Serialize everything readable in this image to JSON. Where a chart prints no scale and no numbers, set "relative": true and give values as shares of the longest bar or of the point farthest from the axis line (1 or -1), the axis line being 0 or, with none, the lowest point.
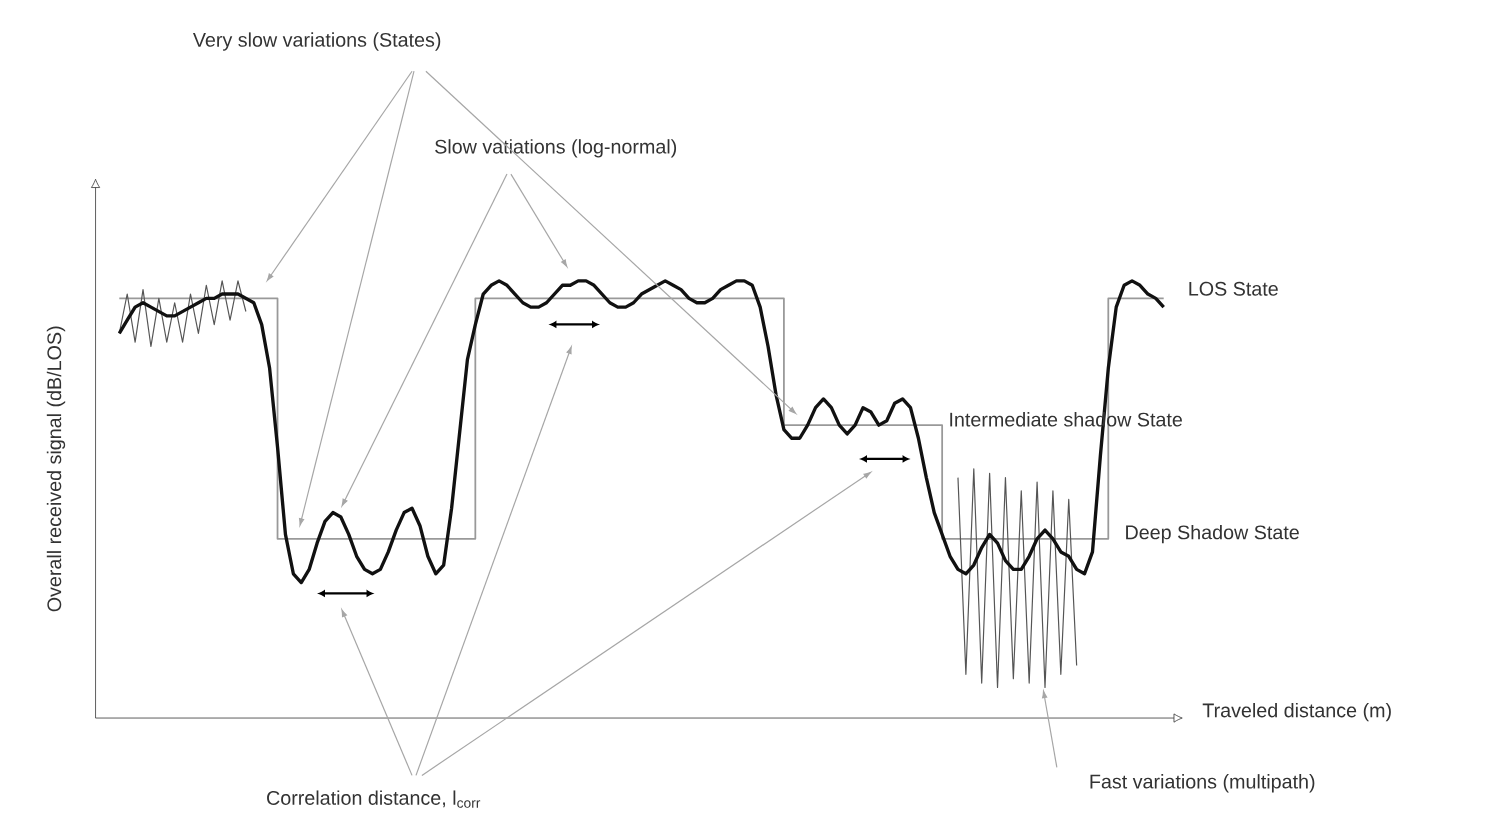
{
  "chart_data": {
    "type": "line",
    "relative": true,
    "xlabel": "Traveled distance (m)",
    "ylabel": "Overall received signal (dB/LOS)",
    "categories": [
      null,
      null,
      null,
      null,
      null,
      null,
      null,
      null,
      null,
      null,
      null,
      null,
      null,
      null,
      null,
      null,
      null,
      null,
      null,
      null,
      null,
      null,
      null,
      null,
      null,
      null,
      null,
      null,
      null,
      null,
      null,
      null,
      null,
      null,
      null,
      null,
      null,
      null,
      null,
      null,
      null,
      null,
      null,
      null,
      null,
      null,
      null,
      null,
      null,
      null,
      null,
      null,
      null,
      null,
      null,
      null,
      null,
      null,
      null,
      null,
      null,
      null,
      null,
      null,
      null,
      null,
      null,
      null,
      null,
      null,
      null,
      null,
      null,
      null,
      null,
      null,
      null,
      null,
      null,
      null,
      null,
      null,
      null,
      null,
      null,
      null,
      null,
      null,
      null,
      null,
      null,
      null,
      null,
      null,
      null,
      null,
      null,
      null,
      null,
      null,
      null,
      null,
      null,
      null,
      null,
      null,
      null,
      null,
      null,
      null,
      null,
      null,
      null,
      null,
      null,
      null,
      null,
      null,
      null,
      null,
      null,
      null,
      null,
      null,
      null,
      null,
      null,
      null,
      null,
      null,
      null,
      null,
      null
    ],
    "series": [
      {
        "type": "step",
        "color": "#999999",
        "values": [
          0.96,
          0.96,
          0.96,
          0.96,
          0.96,
          0.96,
          0.96,
          0.96,
          0.96,
          0.96,
          0.96,
          0.96,
          0.96,
          0.96,
          0.96,
          0.96,
          0.96,
          0.96,
          0.96,
          0.96,
          0.41,
          0.41,
          0.41,
          0.41,
          0.41,
          0.41,
          0.41,
          0.41,
          0.41,
          0.41,
          0.41,
          0.41,
          0.41,
          0.41,
          0.41,
          0.41,
          0.41,
          0.41,
          0.41,
          0.41,
          0.41,
          0.41,
          0.41,
          0.41,
          0.41,
          0.96,
          0.96,
          0.96,
          0.96,
          0.96,
          0.96,
          0.96,
          0.96,
          0.96,
          0.96,
          0.96,
          0.96,
          0.96,
          0.96,
          0.96,
          0.96,
          0.96,
          0.96,
          0.96,
          0.96,
          0.96,
          0.96,
          0.96,
          0.96,
          0.96,
          0.96,
          0.96,
          0.96,
          0.96,
          0.96,
          0.96,
          0.96,
          0.96,
          0.96,
          0.96,
          0.96,
          0.96,
          0.96,
          0.96,
          0.67,
          0.67,
          0.67,
          0.67,
          0.67,
          0.67,
          0.67,
          0.67,
          0.67,
          0.67,
          0.67,
          0.67,
          0.67,
          0.67,
          0.67,
          0.67,
          0.67,
          0.67,
          0.67,
          0.67,
          0.41,
          0.41,
          0.41,
          0.41,
          0.41,
          0.41,
          0.41,
          0.41,
          0.41,
          0.41,
          0.41,
          0.41,
          0.41,
          0.41,
          0.41,
          0.41,
          0.41,
          0.41,
          0.41,
          0.41,
          0.41,
          0.96,
          0.96,
          0.96,
          0.96,
          0.96,
          0.96,
          0.96,
          0.96
        ]
      },
      {
        "type": "line",
        "color": "#555555",
        "values": [
          0.88,
          0.97,
          0.86,
          0.98,
          0.85,
          0.96,
          0.86,
          0.95,
          0.86,
          0.97,
          0.88,
          0.99,
          0.9,
          1.0,
          0.91,
          1.0,
          0.93,
          null,
          null,
          null,
          null,
          null,
          null,
          null,
          null,
          null,
          null,
          null,
          null,
          null,
          null,
          null,
          null,
          null,
          null,
          null,
          null,
          null,
          null,
          null,
          null,
          null,
          null,
          null,
          null,
          null,
          null,
          null,
          null,
          null,
          null,
          null,
          null,
          null,
          null,
          null,
          null,
          null,
          null,
          null,
          null,
          null,
          null,
          null,
          null,
          null,
          null,
          null,
          null,
          null,
          null,
          null,
          null,
          null,
          null,
          null,
          null,
          null,
          null,
          null,
          null,
          null,
          null,
          null,
          null,
          null,
          null,
          null,
          null,
          null,
          null,
          null,
          null,
          null,
          null,
          null,
          null,
          null,
          null,
          null,
          null,
          null,
          null,
          null,
          null,
          null,
          0.55,
          0.1,
          0.57,
          0.08,
          0.56,
          0.07,
          0.55,
          0.09,
          0.52,
          0.08,
          0.54,
          0.07,
          0.52,
          0.1,
          0.5,
          0.12,
          null,
          null,
          null,
          null,
          null,
          null,
          null,
          null,
          null,
          null,
          null
        ]
      },
      {
        "type": "line",
        "color": "#111111",
        "values": [
          0.88,
          0.91,
          0.94,
          0.95,
          0.94,
          0.93,
          0.92,
          0.92,
          0.93,
          0.94,
          0.95,
          0.96,
          0.96,
          0.97,
          0.97,
          0.97,
          0.96,
          0.95,
          0.9,
          0.8,
          0.62,
          0.42,
          0.33,
          0.31,
          0.34,
          0.4,
          0.45,
          0.47,
          0.46,
          0.42,
          0.37,
          0.34,
          0.33,
          0.34,
          0.38,
          0.43,
          0.47,
          0.48,
          0.44,
          0.37,
          0.33,
          0.35,
          0.48,
          0.65,
          0.82,
          0.9,
          0.97,
          0.99,
          1.0,
          0.99,
          0.97,
          0.95,
          0.94,
          0.94,
          0.95,
          0.97,
          0.99,
          0.99,
          1.0,
          1.0,
          0.99,
          0.97,
          0.95,
          0.94,
          0.94,
          0.95,
          0.97,
          0.98,
          0.99,
          1.0,
          0.99,
          0.98,
          0.96,
          0.95,
          0.95,
          0.96,
          0.98,
          0.99,
          1.0,
          1.0,
          0.99,
          0.94,
          0.85,
          0.74,
          0.66,
          0.64,
          0.64,
          0.67,
          0.71,
          0.73,
          0.71,
          0.67,
          0.65,
          0.67,
          0.71,
          0.7,
          0.67,
          0.68,
          0.72,
          0.73,
          0.71,
          0.64,
          0.55,
          0.47,
          0.42,
          0.37,
          0.34,
          0.33,
          0.35,
          0.39,
          0.42,
          0.4,
          0.36,
          0.34,
          0.34,
          0.37,
          0.41,
          0.43,
          0.41,
          0.38,
          0.37,
          0.34,
          0.33,
          0.38,
          0.6,
          0.8,
          0.94,
          0.99,
          1.0,
          0.99,
          0.97,
          0.96,
          0.94
        ]
      }
    ],
    "annotations": [
      "Very slow variations (States)",
      "Slow vatiations (log-normal)",
      "LOS State",
      "Intermediate shadow State",
      "Deep Shadow State",
      "Fast variations (multipath)",
      "Correlation distance, l$_{corr}$"
    ]
  }
}
